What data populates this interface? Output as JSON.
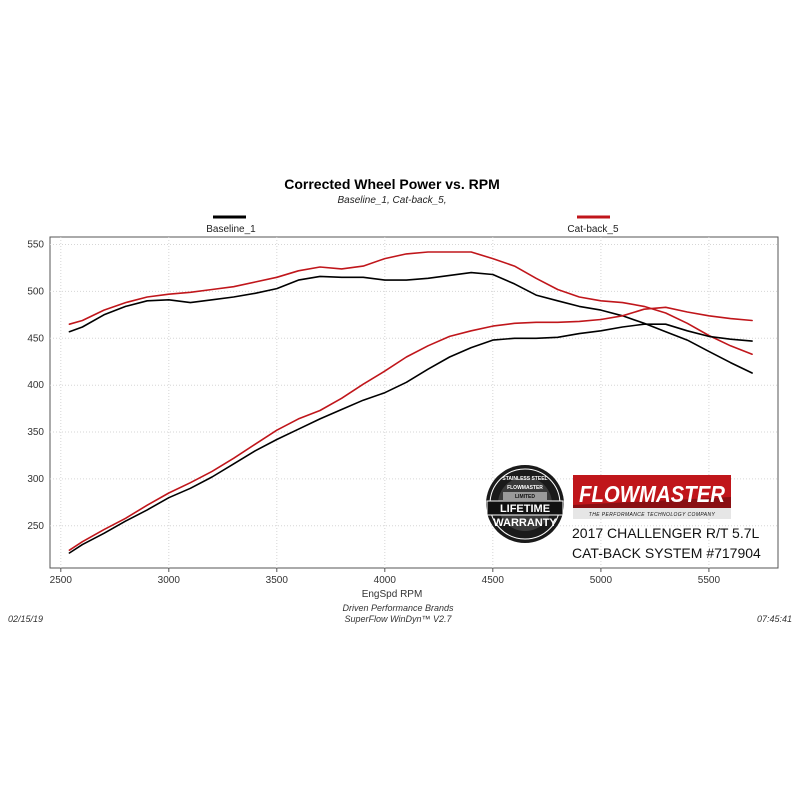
{
  "chart_data": {
    "type": "line",
    "title": "Corrected Wheel Power vs. RPM",
    "subtitle": "Baseline_1, Cat-back_5,",
    "xlabel": "EngSpd  RPM",
    "ylabel": "",
    "xlim": [
      2450,
      5820
    ],
    "ylim": [
      205,
      558
    ],
    "xticks": [
      2500,
      3000,
      3500,
      4000,
      4500,
      5000,
      5500
    ],
    "yticks": [
      250,
      300,
      350,
      400,
      450,
      500,
      550
    ],
    "legend": {
      "placement": "top",
      "entries": [
        "Baseline_1",
        "Cat-back_5"
      ]
    },
    "series": [
      {
        "name": "Baseline_1",
        "color": "#000000",
        "kind": "torque",
        "x": [
          2540,
          2600,
          2700,
          2800,
          2900,
          3000,
          3100,
          3200,
          3300,
          3400,
          3500,
          3600,
          3700,
          3800,
          3900,
          4000,
          4100,
          4200,
          4300,
          4400,
          4500,
          4600,
          4700,
          4800,
          4900,
          5000,
          5100,
          5200,
          5300,
          5400,
          5500,
          5600,
          5700
        ],
        "y": [
          457,
          462,
          475,
          484,
          490,
          491,
          488,
          491,
          494,
          498,
          503,
          512,
          516,
          515,
          515,
          512,
          512,
          514,
          517,
          520,
          518,
          508,
          496,
          490,
          484,
          480,
          474,
          466,
          457,
          448,
          436,
          424,
          413
        ]
      },
      {
        "name": "Cat-back_5",
        "color": "#c0161b",
        "kind": "torque",
        "x": [
          2540,
          2600,
          2700,
          2800,
          2900,
          3000,
          3100,
          3200,
          3300,
          3400,
          3500,
          3600,
          3700,
          3800,
          3900,
          4000,
          4100,
          4200,
          4300,
          4400,
          4500,
          4600,
          4700,
          4800,
          4900,
          5000,
          5100,
          5200,
          5300,
          5400,
          5500,
          5600,
          5700
        ],
        "y": [
          465,
          469,
          480,
          488,
          494,
          497,
          499,
          502,
          505,
          510,
          515,
          522,
          526,
          524,
          527,
          535,
          540,
          542,
          542,
          542,
          535,
          527,
          514,
          502,
          494,
          490,
          488,
          484,
          477,
          466,
          453,
          442,
          433
        ]
      },
      {
        "name": "Baseline_1",
        "color": "#000000",
        "kind": "power",
        "x": [
          2540,
          2600,
          2700,
          2800,
          2900,
          3000,
          3100,
          3200,
          3300,
          3400,
          3500,
          3600,
          3700,
          3800,
          3900,
          4000,
          4100,
          4200,
          4300,
          4400,
          4500,
          4600,
          4700,
          4800,
          4900,
          5000,
          5100,
          5200,
          5300,
          5400,
          5500,
          5600,
          5700
        ],
        "y": [
          221,
          230,
          242,
          255,
          267,
          280,
          290,
          302,
          316,
          330,
          342,
          353,
          364,
          374,
          384,
          392,
          403,
          417,
          430,
          440,
          448,
          450,
          450,
          451,
          455,
          458,
          462,
          465,
          465,
          458,
          452,
          449,
          447
        ]
      },
      {
        "name": "Cat-back_5",
        "color": "#c0161b",
        "kind": "power",
        "x": [
          2540,
          2600,
          2700,
          2800,
          2900,
          3000,
          3100,
          3200,
          3300,
          3400,
          3500,
          3600,
          3700,
          3800,
          3900,
          4000,
          4100,
          4200,
          4300,
          4400,
          4500,
          4600,
          4700,
          4800,
          4900,
          5000,
          5100,
          5200,
          5300,
          5400,
          5500,
          5600,
          5700
        ],
        "y": [
          224,
          233,
          246,
          258,
          272,
          285,
          296,
          308,
          322,
          337,
          352,
          364,
          373,
          386,
          401,
          415,
          430,
          442,
          452,
          458,
          463,
          466,
          467,
          467,
          468,
          470,
          474,
          481,
          483,
          478,
          474,
          471,
          469
        ]
      }
    ]
  },
  "footer": {
    "date": "02/15/19",
    "time": "07:45:41",
    "company": "Driven Performance Brands",
    "software": "SuperFlow WinDyn™  V2.7"
  },
  "badge": {
    "logo_text": "FLOWMASTER",
    "tagline": "THE PERFORMANCE TECHNOLOGY COMPANY",
    "seal_lines": [
      "STAINLESS STEEL",
      "FLOWMASTER",
      "LIMITED",
      "LIFETIME",
      "WARRANTY"
    ],
    "caption_line1": "2017 CHALLENGER R/T 5.7L",
    "caption_line2": "CAT-BACK SYSTEM #717904",
    "logo_red": "#c0161b"
  }
}
